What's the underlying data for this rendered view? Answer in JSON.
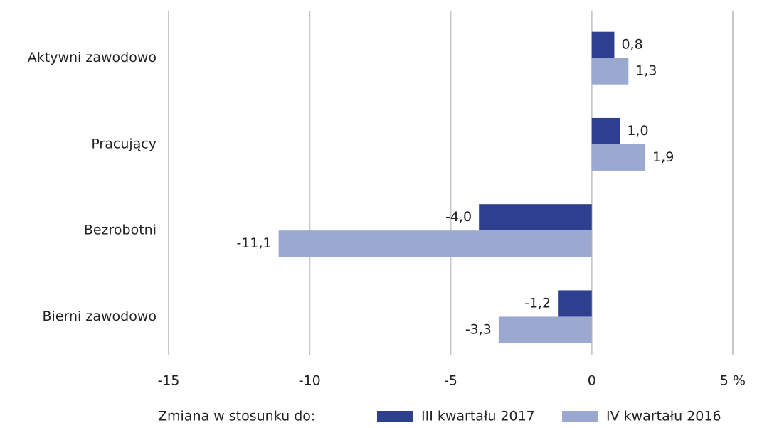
{
  "chart_data": {
    "type": "hbar",
    "categories": [
      "Aktywni zawodowo",
      "Pracujący",
      "Bezrobotni",
      "Bierni zawodowo"
    ],
    "series": [
      {
        "name": "III kwartału 2017",
        "color": "#2f3f8f",
        "values": [
          0.8,
          1.0,
          -4.0,
          -1.2
        ],
        "value_labels": [
          "0,8",
          "1,0",
          "-4,0",
          "-1,2"
        ]
      },
      {
        "name": "IV kwartału 2016",
        "color": "#9ba8d0",
        "values": [
          1.3,
          1.9,
          -11.1,
          -3.3
        ],
        "value_labels": [
          "1,3",
          "1,9",
          "-11,1",
          "-3,3"
        ]
      }
    ],
    "legend_title": "Zmiana w stosunku do:",
    "xlim": [
      -15,
      5
    ],
    "xticks": [
      -15,
      -10,
      -5,
      0,
      {
        "value": 5,
        "label": "5 %"
      }
    ],
    "grid": true,
    "legend": "bottom"
  }
}
